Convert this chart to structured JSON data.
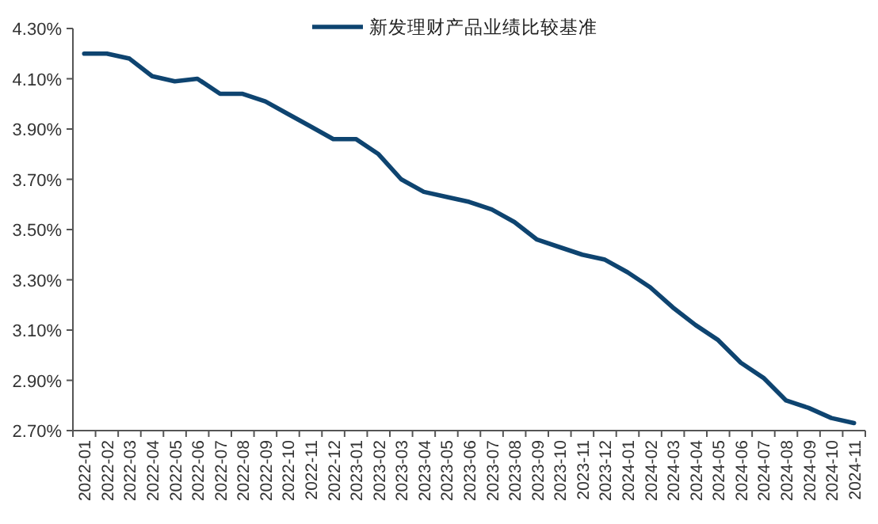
{
  "chart_data": {
    "type": "line",
    "categories": [
      "2022-01",
      "2022-02",
      "2022-03",
      "2022-04",
      "2022-05",
      "2022-06",
      "2022-07",
      "2022-08",
      "2022-09",
      "2022-10",
      "2022-11",
      "2022-12",
      "2023-01",
      "2023-02",
      "2023-03",
      "2023-04",
      "2023-05",
      "2023-06",
      "2023-07",
      "2023-08",
      "2023-09",
      "2023-10",
      "2023-11",
      "2023-12",
      "2024-01",
      "2024-02",
      "2024-03",
      "2024-04",
      "2024-05",
      "2024-06",
      "2024-07",
      "2024-08",
      "2024-09",
      "2024-10",
      "2024-11"
    ],
    "series": [
      {
        "name": "新发理财产品业绩比较基准",
        "color": "#0e4470",
        "values": [
          4.2,
          4.2,
          4.18,
          4.11,
          4.09,
          4.1,
          4.04,
          4.04,
          4.01,
          3.96,
          3.91,
          3.86,
          3.86,
          3.8,
          3.7,
          3.65,
          3.63,
          3.61,
          3.58,
          3.53,
          3.46,
          3.43,
          3.4,
          3.38,
          3.33,
          3.27,
          3.19,
          3.12,
          3.06,
          2.97,
          2.91,
          2.82,
          2.79,
          2.75,
          2.73
        ]
      }
    ],
    "ylim": [
      2.7,
      4.3
    ],
    "yticks": [
      {
        "value": 2.7,
        "label": "2.70%"
      },
      {
        "value": 2.9,
        "label": "2.90%"
      },
      {
        "value": 3.1,
        "label": "3.10%"
      },
      {
        "value": 3.3,
        "label": "3.30%"
      },
      {
        "value": 3.5,
        "label": "3.50%"
      },
      {
        "value": 3.7,
        "label": "3.70%"
      },
      {
        "value": 3.9,
        "label": "3.90%"
      },
      {
        "value": 4.1,
        "label": "4.10%"
      },
      {
        "value": 4.3,
        "label": "4.30%"
      }
    ],
    "grid": false,
    "legend": "top",
    "marker": "none",
    "line_style": "solid"
  }
}
